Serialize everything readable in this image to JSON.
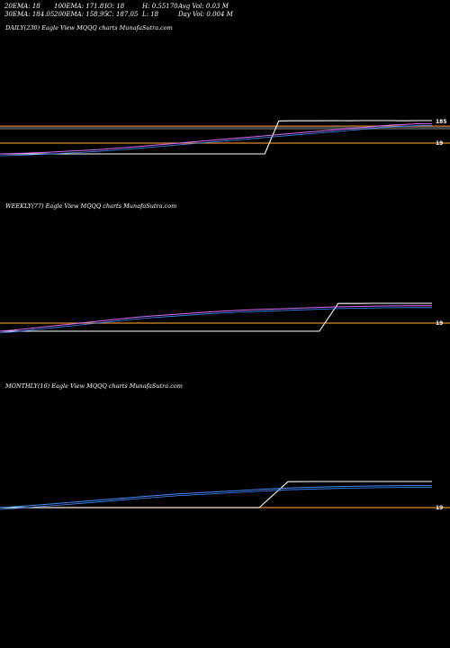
{
  "header": {
    "ema20": "20EMA: 18",
    "ema30": "30EMA: 184.05",
    "ema100": "100EMA: 171.81",
    "ema200": "200EMA: 158.95",
    "open": "O: 18",
    "close": "C: 187.05",
    "high": "H: 0.55170",
    "low": "L: 18",
    "avg_vol": "Avg Vol: 0.03  M",
    "day_vol": "Day Vol: 0.004  M"
  },
  "colors": {
    "background": "#000000",
    "price": "#ffffff",
    "ema_short": "#d96bff",
    "ema_long": "#3f8cff",
    "level_line": "#e0882a",
    "grey_band": "#8a8a8a"
  },
  "chart_data": [
    {
      "type": "line",
      "title": "DAILY(230) Eagle  View  MQQQ charts MunafaSutra.com",
      "price_label": "19",
      "y_top_label": "185",
      "series": [
        {
          "values": [
            18,
            18,
            18,
            18,
            18,
            18,
            18,
            18,
            18,
            18,
            18,
            18,
            18,
            18,
            18,
            18,
            18,
            18,
            18,
            18,
            185,
            186,
            186,
            186,
            187,
            186,
            187,
            187,
            187,
            186,
            187,
            187
          ]
        },
        {
          "values": [
            18,
            20,
            22,
            25,
            28,
            32,
            36,
            40,
            45,
            50,
            56,
            62,
            68,
            74,
            80,
            86,
            92,
            98,
            104,
            110,
            116,
            122,
            128,
            134,
            140,
            146,
            152,
            158,
            164,
            168,
            171,
            172
          ]
        }
      ]
    },
    {
      "type": "line",
      "title": "WEEKLY(77) Eagle  View  MQQQ charts MunafaSutra.com",
      "price_label": "19",
      "series": [
        {
          "values": [
            18,
            18,
            18,
            18,
            18,
            18,
            18,
            18,
            18,
            18,
            18,
            18,
            18,
            18,
            18,
            18,
            18,
            18,
            186,
            186,
            187,
            187,
            187,
            187
          ]
        },
        {
          "values": [
            18,
            28,
            40,
            52,
            64,
            76,
            88,
            100,
            110,
            118,
            126,
            134,
            140,
            146,
            150,
            154,
            158,
            162,
            166,
            168,
            170,
            171,
            172,
            172
          ]
        }
      ]
    },
    {
      "type": "line",
      "title": "MONTHLY(16) Eagle  View  MQQQ charts MunafaSutra.com",
      "price_label": "19",
      "series": [
        {
          "values": [
            18,
            18,
            18,
            18,
            18,
            18,
            18,
            18,
            18,
            18,
            186,
            187,
            187,
            187,
            187,
            187
          ]
        },
        {
          "values": [
            18,
            30,
            45,
            60,
            75,
            90,
            105,
            115,
            125,
            135,
            145,
            150,
            155,
            158,
            160,
            160
          ]
        }
      ]
    }
  ]
}
